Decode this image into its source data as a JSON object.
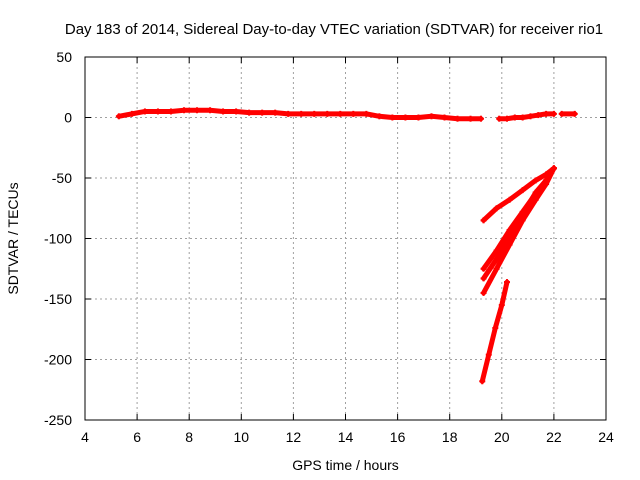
{
  "colors": {
    "background": "#ffffff",
    "series": "#ff0000",
    "grid": "#a0a0a0",
    "axes": "#000000"
  },
  "chart_data": {
    "type": "line",
    "title": "Day 183 of 2014, Sidereal Day-to-day VTEC variation (SDTVAR) for receiver rio1",
    "xlabel": "GPS time / hours",
    "ylabel": "SDTVAR / TECUs",
    "xlim": [
      4,
      24
    ],
    "ylim": [
      -250,
      50
    ],
    "xticks": [
      4,
      6,
      8,
      10,
      12,
      14,
      16,
      18,
      20,
      22,
      24
    ],
    "yticks": [
      -250,
      -200,
      -150,
      -100,
      -50,
      0,
      50
    ],
    "grid": true,
    "series": [
      {
        "id": "upper-trace",
        "marker": "plus",
        "x": [
          5.3,
          5.8,
          6.3,
          6.8,
          7.3,
          7.8,
          8.3,
          8.8,
          9.3,
          9.8,
          10.3,
          10.8,
          11.3,
          11.8,
          12.3,
          12.8,
          13.3,
          13.8,
          14.3,
          14.8,
          15.3,
          15.8,
          16.3,
          16.8,
          17.3,
          17.8,
          18.3,
          18.8,
          19.2
        ],
        "y": [
          1,
          3,
          5,
          5,
          5,
          6,
          6,
          6,
          5,
          5,
          4,
          4,
          4,
          3,
          3,
          3,
          3,
          3,
          3,
          3,
          1,
          0,
          0,
          0,
          1,
          0,
          -1,
          -1,
          -1
        ]
      },
      {
        "id": "late-trace",
        "marker": "plus",
        "x": [
          19.9,
          20.2,
          20.5,
          20.8,
          21.1,
          21.4,
          21.7,
          22.0
        ],
        "y": [
          -1,
          -1,
          0,
          0,
          1,
          2,
          3,
          3
        ]
      },
      {
        "id": "outlier-points",
        "marker": "plus",
        "x": [
          22.3,
          22.8
        ],
        "y": [
          3,
          3
        ]
      },
      {
        "id": "steep-branch-a",
        "marker": "plus",
        "x": [
          19.3,
          19.8,
          20.3,
          20.8,
          21.3,
          21.7,
          22.0
        ],
        "y": [
          -85,
          -75,
          -68,
          -60,
          -52,
          -47,
          -42
        ]
      },
      {
        "id": "steep-branch-b",
        "marker": "plus",
        "x": [
          19.3,
          19.8,
          20.3,
          20.8,
          21.3,
          21.7,
          22.0
        ],
        "y": [
          -125,
          -110,
          -93,
          -78,
          -63,
          -52,
          -42
        ]
      },
      {
        "id": "steep-branch-c",
        "marker": "plus",
        "x": [
          19.3,
          19.8,
          20.3,
          20.8,
          21.3,
          21.7,
          22.0
        ],
        "y": [
          -145,
          -125,
          -105,
          -85,
          -68,
          -55,
          -42
        ]
      },
      {
        "id": "steep-branch-d",
        "marker": "plus",
        "x": [
          19.3,
          19.8,
          20.3,
          20.8,
          21.3,
          21.7,
          22.0
        ],
        "y": [
          -133,
          -117,
          -98,
          -80,
          -62,
          -52,
          -42
        ]
      },
      {
        "id": "lowest-branch",
        "marker": "plus",
        "x": [
          19.25,
          19.5,
          19.75,
          20.0,
          20.2
        ],
        "y": [
          -218,
          -196,
          -174,
          -155,
          -136
        ]
      }
    ]
  }
}
